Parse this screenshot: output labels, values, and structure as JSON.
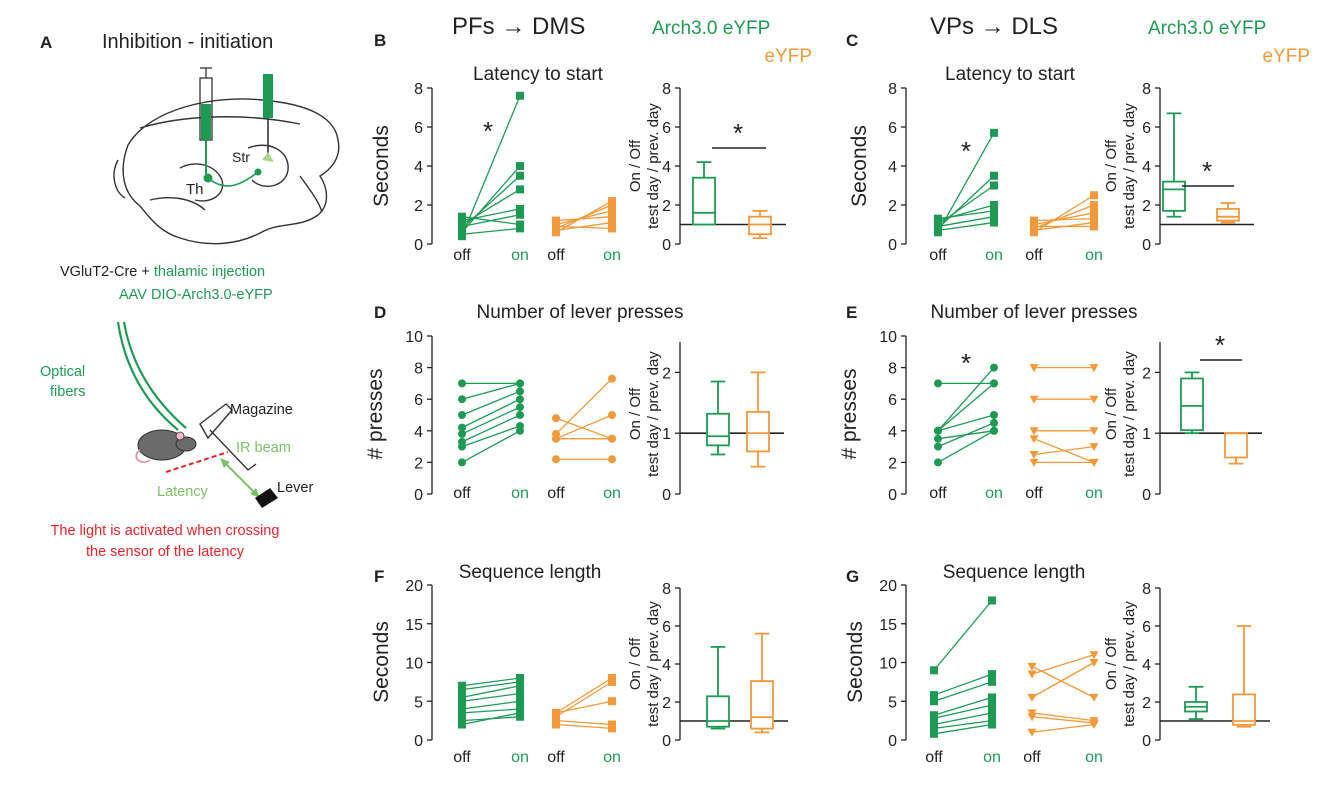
{
  "colors": {
    "arch": "#1f9a55",
    "eyfp": "#f2993a",
    "axis": "#222222",
    "red": "#e8242b",
    "lightgreen": "#7cc16a"
  },
  "panel_a": {
    "letter": "A",
    "title": "Inhibition - initiation",
    "brain_labels": {
      "th": "Th",
      "str": "Str"
    },
    "caption1_black": "VGluT2-Cre + ",
    "caption1_green": "thalamic injection",
    "caption2": "AAV DIO-Arch3.0-eYFP",
    "optical_fibers_1": "Optical",
    "optical_fibers_2": "fibers",
    "magazine": "Magazine",
    "ir_beam": "IR beam",
    "latency": "Latency",
    "lever": "Lever",
    "red_note_1": "The light is activated when crossing",
    "red_note_2": "the sensor of the latency"
  },
  "headers": {
    "left_title": "PFs → DMS",
    "right_title": "VPs → DLS",
    "legend_arch": "Arch3.0 eYFP",
    "legend_eyfp": "eYFP"
  },
  "common": {
    "off": "off",
    "on": "on",
    "ratio_label_1": "On / Off",
    "ratio_label_2": "test day / prev. day",
    "star": "*"
  },
  "chart_data": [
    {
      "panel": "B",
      "type": "line",
      "title": "Latency to start",
      "ylabel": "Seconds",
      "ylim": [
        0,
        8
      ],
      "yticks": [
        0,
        2,
        4,
        6,
        8
      ],
      "ytick_labels": [
        "0",
        "2",
        "4",
        "6",
        "8"
      ],
      "marker": "square",
      "significant_pairs": true,
      "arch_pairs": [
        [
          0.4,
          7.6
        ],
        [
          0.6,
          4.0
        ],
        [
          0.8,
          3.5
        ],
        [
          1.0,
          2.8
        ],
        [
          1.2,
          1.8
        ],
        [
          0.9,
          1.5
        ],
        [
          1.4,
          1.0
        ],
        [
          0.5,
          0.8
        ]
      ],
      "eyfp_pairs": [
        [
          0.6,
          2.2
        ],
        [
          0.8,
          2.0
        ],
        [
          1.0,
          1.7
        ],
        [
          1.2,
          1.4
        ],
        [
          0.7,
          1.1
        ],
        [
          0.9,
          0.8
        ]
      ],
      "ratio_ylim": [
        0,
        8
      ],
      "ratio_yticks": [
        0,
        2,
        4,
        6,
        8
      ],
      "ratio_ytick_labels": [
        "0",
        "2",
        "4",
        "6",
        "8"
      ],
      "ratio_arch_box": {
        "min": 1.0,
        "q1": 1.0,
        "median": 1.6,
        "q3": 3.4,
        "max": 4.2
      },
      "ratio_eyfp_box": {
        "min": 0.3,
        "q1": 0.5,
        "median": 1.0,
        "q3": 1.4,
        "max": 1.7
      },
      "ratio_sig": true
    },
    {
      "panel": "C",
      "type": "line",
      "title": "Latency to start",
      "ylabel": "Seconds",
      "ylim": [
        0,
        8
      ],
      "yticks": [
        0,
        2,
        4,
        6,
        8
      ],
      "ytick_labels": [
        "0",
        "2",
        "4",
        "6",
        "8"
      ],
      "marker": "square",
      "significant_pairs": true,
      "arch_pairs": [
        [
          0.6,
          5.7
        ],
        [
          0.8,
          3.5
        ],
        [
          1.0,
          3.0
        ],
        [
          1.2,
          2.0
        ],
        [
          1.3,
          1.7
        ],
        [
          0.9,
          1.4
        ],
        [
          0.7,
          1.1
        ]
      ],
      "eyfp_pairs": [
        [
          0.6,
          2.5
        ],
        [
          0.8,
          2.0
        ],
        [
          1.0,
          1.6
        ],
        [
          1.2,
          1.3
        ],
        [
          0.7,
          1.1
        ],
        [
          0.9,
          0.9
        ]
      ],
      "ratio_ylim": [
        0,
        8
      ],
      "ratio_yticks": [
        0,
        2,
        4,
        6,
        8
      ],
      "ratio_ytick_labels": [
        "0",
        "2",
        "4",
        "6",
        "8"
      ],
      "ratio_arch_box": {
        "min": 1.4,
        "q1": 1.7,
        "median": 2.8,
        "q3": 3.2,
        "max": 6.7
      },
      "ratio_eyfp_box": {
        "min": 1.1,
        "q1": 1.2,
        "median": 1.4,
        "q3": 1.8,
        "max": 2.1
      },
      "ratio_sig": true
    },
    {
      "panel": "D",
      "type": "line",
      "title": "Number of lever presses",
      "ylabel": "# presses",
      "ylim": [
        0,
        10
      ],
      "yticks": [
        0,
        2,
        4,
        6,
        8,
        10
      ],
      "ytick_labels": [
        "0",
        "2",
        "4",
        "6",
        "8",
        "10"
      ],
      "marker": "circle",
      "significant_pairs": false,
      "arch_pairs": [
        [
          7.0,
          7.0
        ],
        [
          6.0,
          7.0
        ],
        [
          5.0,
          6.5
        ],
        [
          4.2,
          6.0
        ],
        [
          3.8,
          5.5
        ],
        [
          3.3,
          5.0
        ],
        [
          3.0,
          4.3
        ],
        [
          2.0,
          4.0
        ]
      ],
      "eyfp_pairs": [
        [
          4.8,
          3.5
        ],
        [
          3.8,
          7.3
        ],
        [
          3.5,
          5.0
        ],
        [
          3.5,
          3.5
        ],
        [
          2.2,
          2.2
        ]
      ],
      "ratio_ylim": [
        0,
        2.5
      ],
      "ratio_yticks": [
        0,
        1,
        2
      ],
      "ratio_ytick_labels": [
        "0",
        "1",
        "2"
      ],
      "ratio_arch_box": {
        "min": 0.65,
        "q1": 0.8,
        "median": 0.95,
        "q3": 1.32,
        "max": 1.85
      },
      "ratio_eyfp_box": {
        "min": 0.45,
        "q1": 0.7,
        "median": 1.0,
        "q3": 1.35,
        "max": 2.0
      },
      "ratio_sig": false
    },
    {
      "panel": "E",
      "type": "line",
      "title": "Number of lever presses",
      "ylabel": "# presses",
      "ylim": [
        0,
        10
      ],
      "yticks": [
        0,
        2,
        4,
        6,
        8,
        10
      ],
      "ytick_labels": [
        "0",
        "2",
        "4",
        "6",
        "8",
        "10"
      ],
      "marker": "circle",
      "marker_eyfp": "triangle",
      "significant_pairs": true,
      "arch_pairs": [
        [
          7.0,
          7.0
        ],
        [
          4.0,
          8.0
        ],
        [
          4.0,
          7.0
        ],
        [
          4.0,
          5.0
        ],
        [
          3.0,
          4.5
        ],
        [
          2.0,
          4.0
        ],
        [
          3.5,
          4.0
        ]
      ],
      "eyfp_pairs": [
        [
          8.0,
          8.0
        ],
        [
          6.0,
          6.0
        ],
        [
          4.0,
          4.0
        ],
        [
          3.5,
          2.0
        ],
        [
          2.5,
          3.0
        ],
        [
          2.0,
          2.0
        ]
      ],
      "ratio_ylim": [
        0,
        2.5
      ],
      "ratio_yticks": [
        0,
        1,
        2
      ],
      "ratio_ytick_labels": [
        "0",
        "1",
        "2"
      ],
      "ratio_arch_box": {
        "min": 1.0,
        "q1": 1.05,
        "median": 1.45,
        "q3": 1.9,
        "max": 2.0
      },
      "ratio_eyfp_box": {
        "min": 0.5,
        "q1": 0.6,
        "median": 1.0,
        "q3": 1.0,
        "max": 1.0
      },
      "ratio_sig": true
    },
    {
      "panel": "F",
      "type": "line",
      "title": "Sequence length",
      "ylabel": "Seconds",
      "ylim": [
        0,
        20
      ],
      "yticks": [
        0,
        5,
        10,
        15,
        20
      ],
      "ytick_labels": [
        "0",
        "5",
        "10",
        "15",
        "20"
      ],
      "marker": "square",
      "significant_pairs": false,
      "arch_pairs": [
        [
          7.0,
          8.0
        ],
        [
          6.5,
          7.5
        ],
        [
          5.5,
          7.0
        ],
        [
          5.0,
          6.0
        ],
        [
          4.0,
          5.0
        ],
        [
          3.5,
          4.0
        ],
        [
          2.5,
          3.0
        ],
        [
          2.0,
          3.5
        ]
      ],
      "eyfp_pairs": [
        [
          3.5,
          8.0
        ],
        [
          3.0,
          7.5
        ],
        [
          3.5,
          5.0
        ],
        [
          2.5,
          2.0
        ],
        [
          2.0,
          1.5
        ]
      ],
      "ratio_ylim": [
        0,
        8
      ],
      "ratio_yticks": [
        0,
        2,
        4,
        6,
        8
      ],
      "ratio_ytick_labels": [
        "0",
        "2",
        "4",
        "6",
        "8"
      ],
      "ratio_arch_box": {
        "min": 0.6,
        "q1": 0.7,
        "median": 1.0,
        "q3": 2.3,
        "max": 4.9
      },
      "ratio_eyfp_box": {
        "min": 0.4,
        "q1": 0.6,
        "median": 1.2,
        "q3": 3.1,
        "max": 5.6
      },
      "ratio_sig": false
    },
    {
      "panel": "G",
      "type": "line",
      "title": "Sequence length",
      "ylabel": "Seconds",
      "ylim": [
        0,
        20
      ],
      "yticks": [
        0,
        5,
        10,
        15,
        20
      ],
      "ytick_labels": [
        "0",
        "5",
        "10",
        "15",
        "20"
      ],
      "marker": "square",
      "marker_eyfp": "triangle",
      "significant_pairs": false,
      "arch_pairs": [
        [
          9.0,
          18.0
        ],
        [
          5.8,
          8.5
        ],
        [
          5.0,
          7.5
        ],
        [
          3.2,
          5.5
        ],
        [
          2.8,
          4.5
        ],
        [
          2.0,
          3.5
        ],
        [
          1.5,
          2.5
        ],
        [
          0.8,
          2.0
        ]
      ],
      "eyfp_pairs": [
        [
          9.5,
          5.5
        ],
        [
          8.5,
          11.0
        ],
        [
          5.5,
          10.0
        ],
        [
          3.5,
          2.5
        ],
        [
          3.0,
          2.2
        ],
        [
          1.0,
          2.0
        ]
      ],
      "ratio_ylim": [
        0,
        8
      ],
      "ratio_yticks": [
        0,
        2,
        4,
        6,
        8
      ],
      "ratio_ytick_labels": [
        "0",
        "2",
        "4",
        "6",
        "8"
      ],
      "ratio_arch_box": {
        "min": 1.1,
        "q1": 1.5,
        "median": 1.75,
        "q3": 2.0,
        "max": 2.8
      },
      "ratio_eyfp_box": {
        "min": 0.7,
        "q1": 0.8,
        "median": 1.0,
        "q3": 2.4,
        "max": 6.0
      },
      "ratio_sig": false
    }
  ]
}
